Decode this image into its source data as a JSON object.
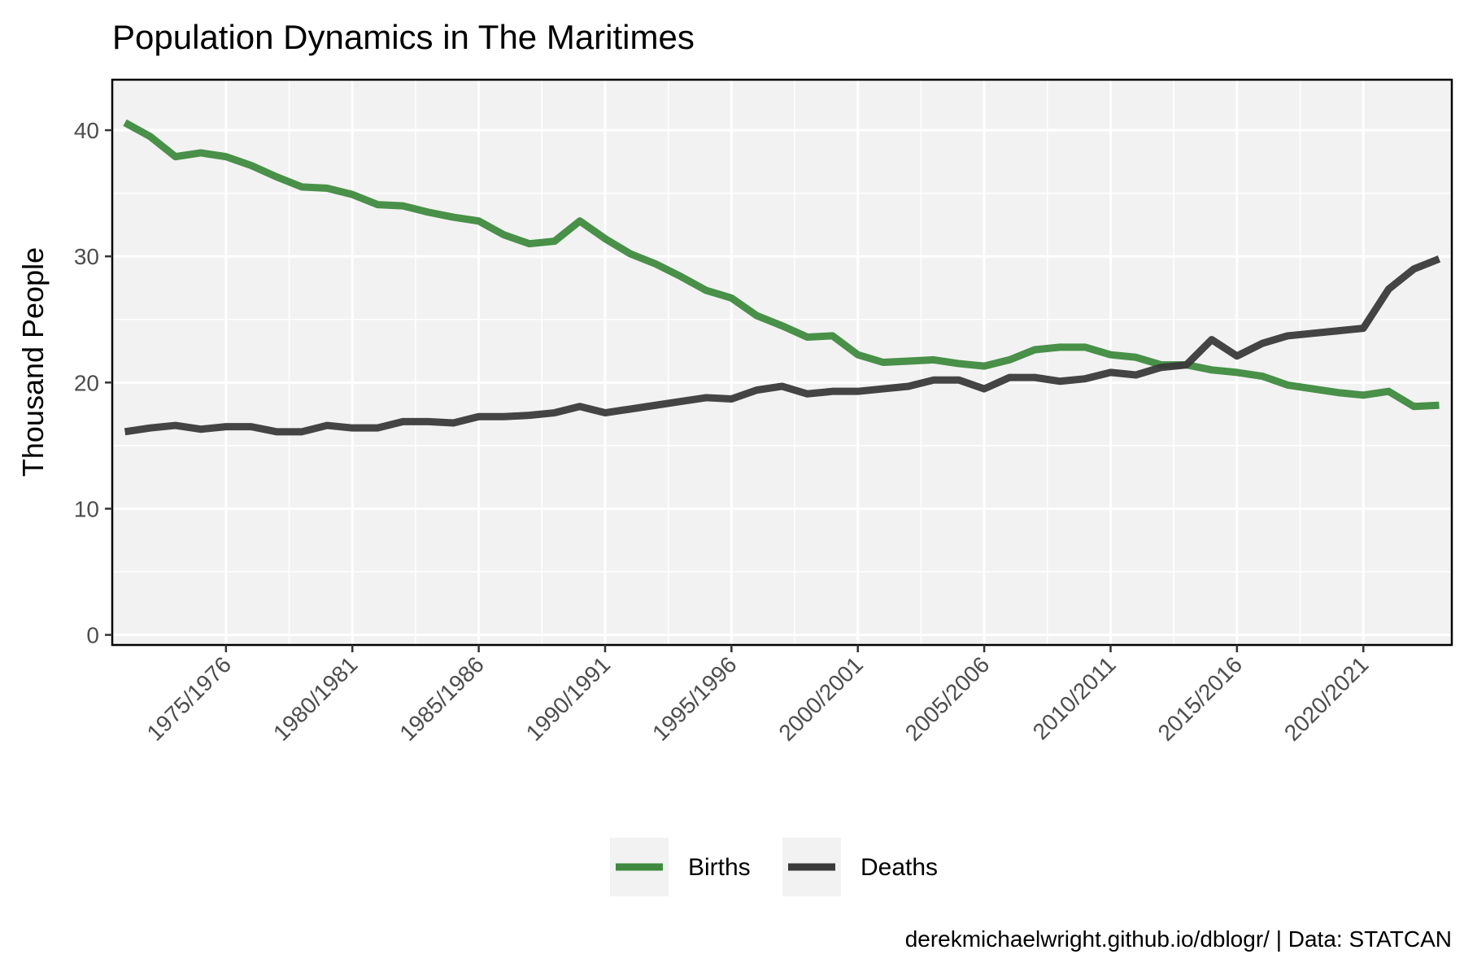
{
  "chart_data": {
    "type": "line",
    "title": "Population Dynamics in The Maritimes",
    "ylabel": "Thousand People",
    "xlabel": "",
    "caption": "derekmichaelwright.github.io/dblogr/ | Data: STATCAN",
    "ylim": [
      0,
      44
    ],
    "yticks": [
      0,
      10,
      20,
      30,
      40
    ],
    "x_start_year": 1971,
    "x_end_year": 2023,
    "x_tick_labels": [
      "1975/1976",
      "1980/1981",
      "1985/1986",
      "1990/1991",
      "1995/1996",
      "2000/2001",
      "2005/2006",
      "2010/2011",
      "2015/2016",
      "2020/2021"
    ],
    "x_tick_start_years": [
      1975,
      1980,
      1985,
      1990,
      1995,
      2000,
      2005,
      2010,
      2015,
      2020
    ],
    "legend_position": "bottom",
    "grid": true,
    "series": [
      {
        "name": "Births",
        "color": "#3f8a3f",
        "values": [
          40.6,
          39.5,
          37.9,
          38.2,
          37.9,
          37.2,
          36.3,
          35.5,
          35.4,
          34.9,
          34.1,
          34.0,
          33.5,
          33.1,
          32.8,
          31.7,
          31.0,
          31.2,
          32.8,
          31.4,
          30.2,
          29.4,
          28.4,
          27.3,
          26.7,
          25.3,
          24.5,
          23.6,
          23.7,
          22.2,
          21.6,
          21.7,
          21.8,
          21.5,
          21.3,
          21.8,
          22.6,
          22.8,
          22.8,
          22.2,
          22.0,
          21.4,
          21.4,
          21.0,
          20.8,
          20.5,
          19.8,
          19.5,
          19.2,
          19.0,
          19.3,
          18.1,
          18.2
        ]
      },
      {
        "name": "Deaths",
        "color": "#3a3a3a",
        "values": [
          16.1,
          16.4,
          16.6,
          16.3,
          16.5,
          16.5,
          16.1,
          16.1,
          16.6,
          16.4,
          16.4,
          16.9,
          16.9,
          16.8,
          17.3,
          17.3,
          17.4,
          17.6,
          18.1,
          17.6,
          17.9,
          18.2,
          18.5,
          18.8,
          18.7,
          19.4,
          19.7,
          19.1,
          19.3,
          19.3,
          19.5,
          19.7,
          20.2,
          20.2,
          19.5,
          20.4,
          20.4,
          20.1,
          20.3,
          20.8,
          20.6,
          21.2,
          21.4,
          23.4,
          22.1,
          23.1,
          23.7,
          23.9,
          24.1,
          24.3,
          27.4,
          29.0,
          29.8
        ]
      }
    ]
  }
}
